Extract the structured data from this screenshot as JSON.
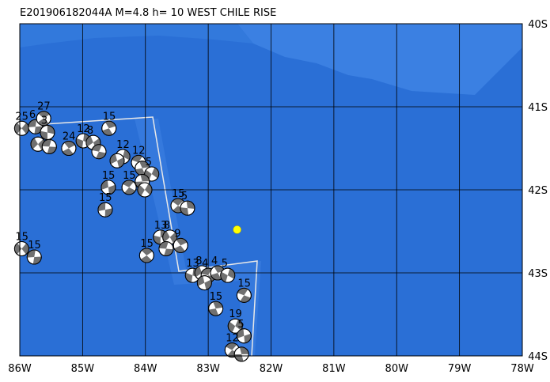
{
  "title": "E201906182044A  M=4.8  h= 10  WEST CHILE RISE",
  "map": {
    "lonlim": [
      -86,
      -78
    ],
    "latlim": [
      -44,
      -40
    ],
    "lonticks": [
      {
        "value": -86,
        "label": "86W"
      },
      {
        "value": -85,
        "label": "85W"
      },
      {
        "value": -84,
        "label": "84W"
      },
      {
        "value": -83,
        "label": "83W"
      },
      {
        "value": -82,
        "label": "82W"
      },
      {
        "value": -81,
        "label": "81W"
      },
      {
        "value": -80,
        "label": "80W"
      },
      {
        "value": -79,
        "label": "79W"
      },
      {
        "value": -78,
        "label": "78W"
      }
    ],
    "latticks": [
      {
        "value": -40,
        "label": "40S"
      },
      {
        "value": -41,
        "label": "41S"
      },
      {
        "value": -42,
        "label": "42S"
      },
      {
        "value": -43,
        "label": "43S"
      },
      {
        "value": -44,
        "label": "44S"
      }
    ],
    "epicenter": {
      "lon": -82.54,
      "lat": -42.48,
      "color": "#ffff00"
    },
    "events": [
      {
        "lon": -85.97,
        "lat": -41.26,
        "label": "25"
      },
      {
        "lon": -85.75,
        "lat": -41.24,
        "label": "6"
      },
      {
        "lon": -85.62,
        "lat": -41.14,
        "label": "27"
      },
      {
        "lon": -85.56,
        "lat": -41.31,
        "label": "3"
      },
      {
        "lon": -85.71,
        "lat": -41.45
      },
      {
        "lon": -85.53,
        "lat": -41.48
      },
      {
        "lon": -85.22,
        "lat": -41.5,
        "label": "24"
      },
      {
        "lon": -84.99,
        "lat": -41.41,
        "label": "12"
      },
      {
        "lon": -84.83,
        "lat": -41.43,
        "label": "8"
      },
      {
        "lon": -84.74,
        "lat": -41.54
      },
      {
        "lon": -84.58,
        "lat": -41.26,
        "label": "15"
      },
      {
        "lon": -84.36,
        "lat": -41.6,
        "label": "12"
      },
      {
        "lon": -84.45,
        "lat": -41.65
      },
      {
        "lon": -84.11,
        "lat": -41.67,
        "label": "12"
      },
      {
        "lon": -84.05,
        "lat": -41.74
      },
      {
        "lon": -83.9,
        "lat": -41.81,
        "label": "5"
      },
      {
        "lon": -84.59,
        "lat": -41.97,
        "label": "15"
      },
      {
        "lon": -84.26,
        "lat": -41.97,
        "label": "15"
      },
      {
        "lon": -84.05,
        "lat": -41.9
      },
      {
        "lon": -84.01,
        "lat": -42.0
      },
      {
        "lon": -84.64,
        "lat": -42.24,
        "label": "15"
      },
      {
        "lon": -83.48,
        "lat": -42.19,
        "label": "15"
      },
      {
        "lon": -83.33,
        "lat": -42.22,
        "label": "5"
      },
      {
        "lon": -85.97,
        "lat": -42.71,
        "label": "15"
      },
      {
        "lon": -85.77,
        "lat": -42.81,
        "label": "15"
      },
      {
        "lon": -83.98,
        "lat": -42.79,
        "label": "15"
      },
      {
        "lon": -83.76,
        "lat": -42.57,
        "label": "13"
      },
      {
        "lon": -83.61,
        "lat": -42.57,
        "label": "8"
      },
      {
        "lon": -83.67,
        "lat": -42.71
      },
      {
        "lon": -83.44,
        "lat": -42.67,
        "label": "9"
      },
      {
        "lon": -83.25,
        "lat": -43.03,
        "label": "13"
      },
      {
        "lon": -83.1,
        "lat": -43.0,
        "label": "8"
      },
      {
        "lon": -83.0,
        "lat": -43.03,
        "label": "4"
      },
      {
        "lon": -82.85,
        "lat": -43.0,
        "label": "4"
      },
      {
        "lon": -82.69,
        "lat": -43.03,
        "label": "5"
      },
      {
        "lon": -83.06,
        "lat": -43.12
      },
      {
        "lon": -82.43,
        "lat": -43.27,
        "label": "15"
      },
      {
        "lon": -82.88,
        "lat": -43.43,
        "label": "15"
      },
      {
        "lon": -82.57,
        "lat": -43.64,
        "label": "19"
      },
      {
        "lon": -82.43,
        "lat": -43.76,
        "label": "5"
      },
      {
        "lon": -82.62,
        "lat": -43.93,
        "label": "12"
      },
      {
        "lon": -82.47,
        "lat": -43.98
      }
    ]
  }
}
